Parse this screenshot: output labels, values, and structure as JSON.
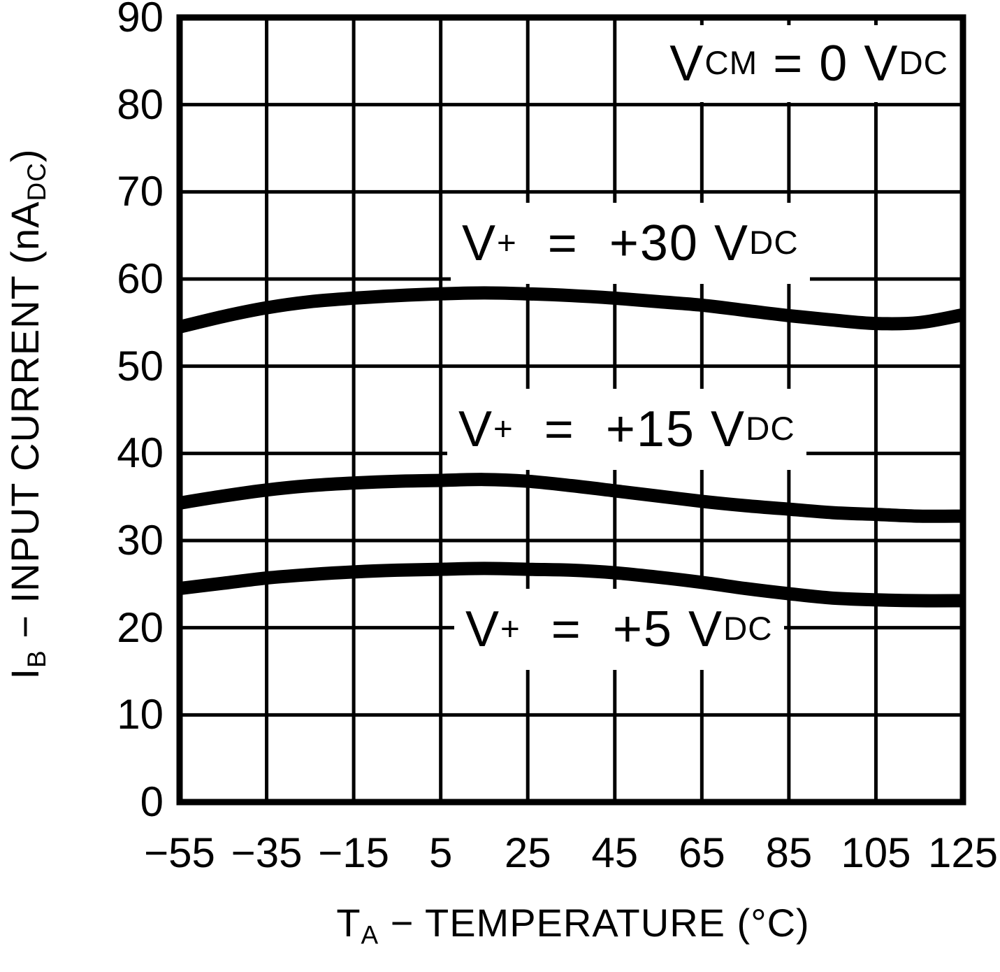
{
  "figure": {
    "background_color": "#ffffff",
    "foreground_color": "#000000"
  },
  "chart_data": {
    "type": "line",
    "title": "",
    "grid": true,
    "line_color": "#000000",
    "x_axis": {
      "label": "TA − TEMPERATURE (°C)",
      "label_parts": [
        {
          "t": "T"
        },
        {
          "t": "A",
          "s": "sub"
        },
        {
          "t": " − TEMPERATURE (°C)"
        }
      ],
      "range": [
        -55,
        125
      ],
      "ticks": [
        {
          "v": -55,
          "label": "−55"
        },
        {
          "v": -35,
          "label": "−35"
        },
        {
          "v": -15,
          "label": "−15"
        },
        {
          "v": 5,
          "label": "5"
        },
        {
          "v": 25,
          "label": "25"
        },
        {
          "v": 45,
          "label": "45"
        },
        {
          "v": 65,
          "label": "65"
        },
        {
          "v": 85,
          "label": "85"
        },
        {
          "v": 105,
          "label": "105"
        },
        {
          "v": 125,
          "label": "125"
        }
      ]
    },
    "y_axis": {
      "label": "IB − INPUT CURRENT (nADC)",
      "label_parts": [
        {
          "t": "I"
        },
        {
          "t": "B",
          "s": "sub"
        },
        {
          "t": " − INPUT CURRENT (nA"
        },
        {
          "t": "DC",
          "s": "sub"
        },
        {
          "t": ")"
        }
      ],
      "range": [
        0,
        90
      ],
      "ticks": [
        0,
        10,
        20,
        30,
        40,
        50,
        60,
        70,
        80,
        90
      ]
    },
    "annotation": {
      "text": "VCM = 0 VDC",
      "parts": [
        {
          "t": "V"
        },
        {
          "t": "CM",
          "s": "sub"
        },
        {
          "t": " = 0 V"
        },
        {
          "t": "DC",
          "s": "sub"
        }
      ]
    },
    "x": [
      -55,
      -45,
      -35,
      -25,
      -15,
      -5,
      5,
      15,
      25,
      35,
      45,
      55,
      65,
      75,
      85,
      95,
      105,
      115,
      125
    ],
    "series": [
      {
        "name": "V+ = +30 VDC",
        "label_parts": [
          {
            "t": "V"
          },
          {
            "t": "+",
            "s": "sup"
          },
          {
            "t": "  =  +30 V"
          },
          {
            "t": "DC",
            "s": "sub"
          }
        ],
        "values": [
          54.5,
          55.7,
          56.7,
          57.4,
          57.8,
          58.1,
          58.3,
          58.4,
          58.3,
          58.1,
          57.8,
          57.4,
          57.0,
          56.4,
          55.8,
          55.3,
          54.9,
          55.0,
          55.9
        ]
      },
      {
        "name": "V+ = +15 VDC",
        "label_parts": [
          {
            "t": "V"
          },
          {
            "t": "+",
            "s": "sup"
          },
          {
            "t": "  =  +15 V"
          },
          {
            "t": "DC",
            "s": "sub"
          }
        ],
        "values": [
          34.3,
          35.1,
          35.8,
          36.3,
          36.6,
          36.8,
          36.9,
          37.0,
          36.8,
          36.3,
          35.7,
          35.1,
          34.5,
          34.0,
          33.6,
          33.2,
          33.0,
          32.8,
          32.8
        ]
      },
      {
        "name": "V+ = +5 VDC",
        "label_parts": [
          {
            "t": "V"
          },
          {
            "t": "+",
            "s": "sup"
          },
          {
            "t": "  =  +5 V"
          },
          {
            "t": "DC",
            "s": "sub"
          }
        ],
        "values": [
          24.5,
          25.1,
          25.7,
          26.1,
          26.4,
          26.6,
          26.7,
          26.8,
          26.7,
          26.6,
          26.3,
          25.8,
          25.2,
          24.5,
          23.9,
          23.4,
          23.2,
          23.1,
          23.1
        ]
      }
    ]
  }
}
